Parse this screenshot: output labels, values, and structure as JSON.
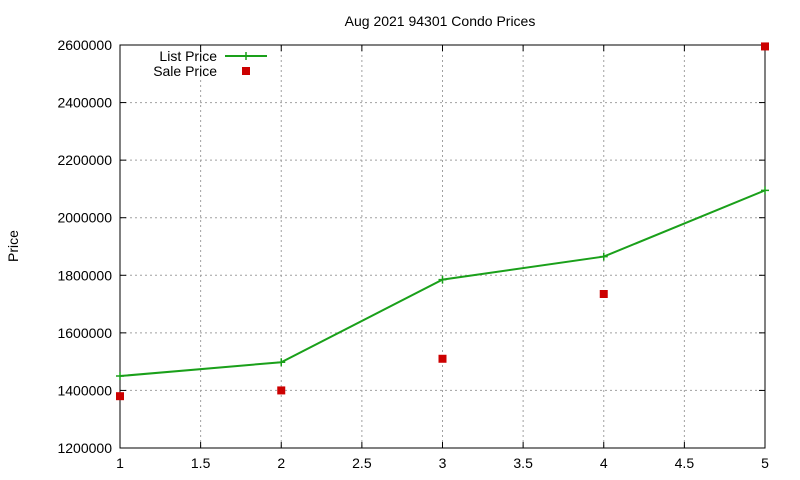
{
  "chart_data": {
    "type": "line",
    "title": "Aug 2021 94301 Condo Prices",
    "xlabel": "",
    "ylabel": "Price",
    "xlim": [
      1,
      5
    ],
    "ylim": [
      1200000,
      2600000
    ],
    "x_ticks": [
      1,
      1.5,
      2,
      2.5,
      3,
      3.5,
      4,
      4.5,
      5
    ],
    "y_ticks": [
      1200000,
      1400000,
      1600000,
      1800000,
      2000000,
      2200000,
      2400000,
      2600000
    ],
    "grid": true,
    "legend_position": "top-left",
    "series": [
      {
        "name": "List Price",
        "style": "line-with-plus-markers",
        "color": "#1aa01a",
        "x": [
          1,
          2,
          3,
          4,
          5
        ],
        "y": [
          1450000,
          1498000,
          1785000,
          1865000,
          2095000
        ]
      },
      {
        "name": "Sale Price",
        "style": "square-markers",
        "color": "#cc0000",
        "x": [
          1,
          2,
          3,
          4,
          5
        ],
        "y": [
          1380000,
          1400000,
          1510000,
          1735000,
          2595000
        ]
      }
    ]
  }
}
